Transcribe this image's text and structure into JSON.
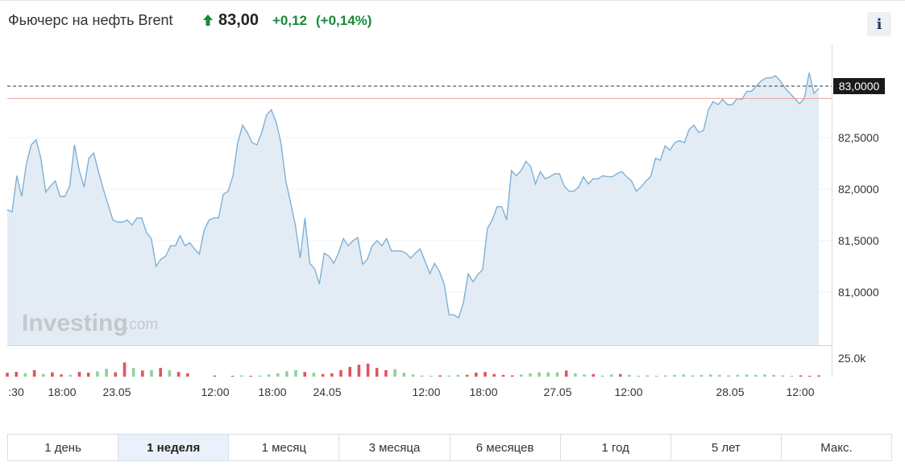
{
  "header": {
    "title": "Фьючерс на нефть Brent",
    "price": "83,00",
    "change": "+0,12",
    "change_pct": "(+0,14%)",
    "info_label": "i"
  },
  "colors": {
    "line": "#7fb0d8",
    "area": "#e3ecf4",
    "positive": "#1a8a3a",
    "vol_up": "#8fd09f",
    "vol_down": "#e0555e",
    "prev_close": "#f0a0a0"
  },
  "watermark": {
    "brand": "Investing",
    "suffix": ".com"
  },
  "chart_data": {
    "type": "area",
    "y_ticks": [
      "83,0000",
      "82,5000",
      "82,0000",
      "81,5000",
      "81,0000"
    ],
    "y_range": [
      80.5,
      83.3
    ],
    "current_price_label": "83,0000",
    "current_price": 83.0,
    "previous_close": 82.88,
    "volume_tick": "25.0k",
    "x_ticks": [
      ":30",
      "18:00",
      "23.05",
      "12:00",
      "18:00",
      "24.05",
      "12:00",
      "18:00",
      "27.05",
      "12:00",
      "28.05",
      "12:00"
    ],
    "values": [
      81.8,
      81.78,
      82.13,
      81.93,
      82.25,
      82.43,
      82.48,
      82.3,
      81.97,
      82.03,
      82.08,
      81.93,
      81.93,
      82.03,
      82.43,
      82.18,
      82.02,
      82.3,
      82.35,
      82.17,
      82.0,
      81.85,
      81.7,
      81.68,
      81.68,
      81.7,
      81.65,
      81.72,
      81.72,
      81.58,
      81.52,
      81.25,
      81.32,
      81.35,
      81.45,
      81.45,
      81.55,
      81.45,
      81.48,
      81.42,
      81.37,
      81.6,
      81.7,
      81.72,
      81.72,
      81.95,
      81.98,
      82.13,
      82.45,
      82.62,
      82.55,
      82.45,
      82.43,
      82.55,
      82.72,
      82.77,
      82.65,
      82.45,
      82.08,
      81.87,
      81.65,
      81.33,
      81.72,
      81.28,
      81.23,
      81.08,
      81.38,
      81.35,
      81.28,
      81.38,
      81.52,
      81.45,
      81.5,
      81.53,
      81.27,
      81.32,
      81.45,
      81.5,
      81.45,
      81.52,
      81.4,
      81.4,
      81.4,
      81.38,
      81.33,
      81.38,
      81.42,
      81.3,
      81.18,
      81.28,
      81.2,
      81.08,
      80.78,
      80.78,
      80.75,
      80.9,
      81.18,
      81.1,
      81.17,
      81.22,
      81.62,
      81.7,
      81.83,
      81.83,
      81.7,
      82.18,
      82.13,
      82.18,
      82.27,
      82.22,
      82.05,
      82.17,
      82.1,
      82.12,
      82.15,
      82.15,
      82.03,
      81.98,
      81.98,
      82.02,
      82.12,
      82.05,
      82.1,
      82.1,
      82.13,
      82.12,
      82.12,
      82.15,
      82.17,
      82.12,
      82.08,
      81.98,
      82.02,
      82.08,
      82.12,
      82.3,
      82.28,
      82.42,
      82.38,
      82.45,
      82.47,
      82.45,
      82.58,
      82.62,
      82.55,
      82.57,
      82.77,
      82.85,
      82.82,
      82.87,
      82.82,
      82.82,
      82.88,
      82.87,
      82.95,
      82.95,
      83.0,
      83.05,
      83.08,
      83.08,
      83.1,
      83.05,
      82.98,
      82.93,
      82.88,
      82.83,
      82.88,
      83.13,
      82.93,
      82.98
    ],
    "volume": [
      {
        "v": 0.18,
        "up": false
      },
      {
        "v": 0.22,
        "up": false
      },
      {
        "v": 0.16,
        "up": true
      },
      {
        "v": 0.3,
        "up": false
      },
      {
        "v": 0.12,
        "up": true
      },
      {
        "v": 0.2,
        "up": false
      },
      {
        "v": 0.1,
        "up": false
      },
      {
        "v": 0.08,
        "up": true
      },
      {
        "v": 0.22,
        "up": false
      },
      {
        "v": 0.18,
        "up": false
      },
      {
        "v": 0.24,
        "up": true
      },
      {
        "v": 0.36,
        "up": true
      },
      {
        "v": 0.2,
        "up": false
      },
      {
        "v": 0.65,
        "up": false
      },
      {
        "v": 0.4,
        "up": true
      },
      {
        "v": 0.28,
        "up": false
      },
      {
        "v": 0.3,
        "up": true
      },
      {
        "v": 0.4,
        "up": false
      },
      {
        "v": 0.3,
        "up": true
      },
      {
        "v": 0.22,
        "up": false
      },
      {
        "v": 0.15,
        "up": false
      },
      {
        "v": 0,
        "up": true
      },
      {
        "v": 0,
        "up": true
      },
      {
        "v": 0.05,
        "up": false
      },
      {
        "v": 0,
        "up": true
      },
      {
        "v": 0.04,
        "up": false
      },
      {
        "v": 0.06,
        "up": true
      },
      {
        "v": 0.04,
        "up": false
      },
      {
        "v": 0.05,
        "up": true
      },
      {
        "v": 0.1,
        "up": true
      },
      {
        "v": 0.15,
        "up": true
      },
      {
        "v": 0.25,
        "up": true
      },
      {
        "v": 0.3,
        "up": true
      },
      {
        "v": 0.22,
        "up": false
      },
      {
        "v": 0.18,
        "up": true
      },
      {
        "v": 0.12,
        "up": false
      },
      {
        "v": 0.15,
        "up": false
      },
      {
        "v": 0.3,
        "up": false
      },
      {
        "v": 0.45,
        "up": false
      },
      {
        "v": 0.55,
        "up": false
      },
      {
        "v": 0.6,
        "up": false
      },
      {
        "v": 0.4,
        "up": false
      },
      {
        "v": 0.3,
        "up": false
      },
      {
        "v": 0.35,
        "up": true
      },
      {
        "v": 0.18,
        "up": true
      },
      {
        "v": 0.1,
        "up": true
      },
      {
        "v": 0.05,
        "up": true
      },
      {
        "v": 0.04,
        "up": true
      },
      {
        "v": 0.06,
        "up": false
      },
      {
        "v": 0.05,
        "up": true
      },
      {
        "v": 0.08,
        "up": true
      },
      {
        "v": 0.08,
        "up": false
      },
      {
        "v": 0.18,
        "up": false
      },
      {
        "v": 0.22,
        "up": false
      },
      {
        "v": 0.12,
        "up": false
      },
      {
        "v": 0.08,
        "up": false
      },
      {
        "v": 0.06,
        "up": false
      },
      {
        "v": 0.1,
        "up": true
      },
      {
        "v": 0.15,
        "up": true
      },
      {
        "v": 0.2,
        "up": true
      },
      {
        "v": 0.2,
        "up": true
      },
      {
        "v": 0.2,
        "up": true
      },
      {
        "v": 0.28,
        "up": false
      },
      {
        "v": 0.15,
        "up": true
      },
      {
        "v": 0.1,
        "up": true
      },
      {
        "v": 0.12,
        "up": false
      },
      {
        "v": 0.05,
        "up": true
      },
      {
        "v": 0.1,
        "up": true
      },
      {
        "v": 0.12,
        "up": false
      },
      {
        "v": 0.08,
        "up": true
      },
      {
        "v": 0.04,
        "up": true
      },
      {
        "v": 0.06,
        "up": true
      },
      {
        "v": 0.04,
        "up": true
      },
      {
        "v": 0.06,
        "up": true
      },
      {
        "v": 0.08,
        "up": true
      },
      {
        "v": 0.1,
        "up": true
      },
      {
        "v": 0.06,
        "up": true
      },
      {
        "v": 0.08,
        "up": true
      },
      {
        "v": 0.1,
        "up": true
      },
      {
        "v": 0.08,
        "up": true
      },
      {
        "v": 0.06,
        "up": true
      },
      {
        "v": 0.08,
        "up": true
      },
      {
        "v": 0.1,
        "up": true
      },
      {
        "v": 0.08,
        "up": true
      },
      {
        "v": 0.1,
        "up": true
      },
      {
        "v": 0.08,
        "up": true
      },
      {
        "v": 0.06,
        "up": true
      },
      {
        "v": 0.04,
        "up": true
      },
      {
        "v": 0.06,
        "up": false
      },
      {
        "v": 0.04,
        "up": false
      },
      {
        "v": 0.06,
        "up": false
      }
    ]
  },
  "periods": [
    "1 день",
    "1 неделя",
    "1 месяц",
    "3 месяца",
    "6 месяцев",
    "1 год",
    "5 лет",
    "Макс."
  ],
  "active_period": 1
}
